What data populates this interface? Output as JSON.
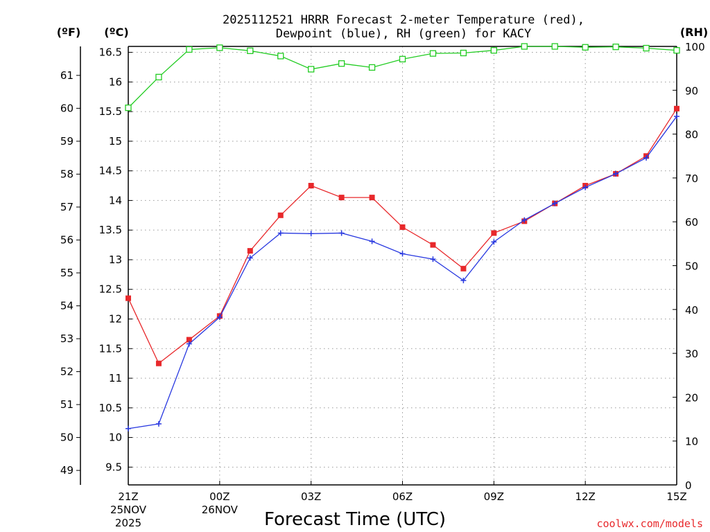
{
  "chart_data": {
    "type": "line",
    "title_line1": "2025112521 HRRR Forecast 2-meter Temperature (red),",
    "title_line2": "Dewpoint (blue), RH (green) for KACY",
    "xlabel": "Forecast Time (UTC)",
    "credit": "coolwx.com/models",
    "units": {
      "fahrenheit": "(ºF)",
      "celsius": "(ºC)",
      "rh": "(RH)"
    },
    "x_hours": [
      0,
      1,
      2,
      3,
      4,
      5,
      6,
      7,
      8,
      9,
      10,
      11,
      12,
      13,
      14,
      15,
      16,
      17,
      18
    ],
    "x_ticks": [
      {
        "hour": 0,
        "label": "21Z",
        "date": "25NOV",
        "year": "2025"
      },
      {
        "hour": 3,
        "label": "00Z",
        "date": "26NOV",
        "year": ""
      },
      {
        "hour": 6,
        "label": "03Z",
        "date": "",
        "year": ""
      },
      {
        "hour": 9,
        "label": "06Z",
        "date": "",
        "year": ""
      },
      {
        "hour": 12,
        "label": "09Z",
        "date": "",
        "year": ""
      },
      {
        "hour": 15,
        "label": "12Z",
        "date": "",
        "year": ""
      },
      {
        "hour": 18,
        "label": "15Z",
        "date": "",
        "year": ""
      }
    ],
    "celsius_axis": {
      "min": 9.2,
      "max": 16.6,
      "ticks": [
        "9.5",
        "10",
        "10.5",
        "11",
        "11.5",
        "12",
        "12.5",
        "13",
        "13.5",
        "14",
        "14.5",
        "15",
        "15.5",
        "16",
        "16.5"
      ]
    },
    "fahrenheit_axis": {
      "ticks": [
        "49",
        "50",
        "51",
        "52",
        "53",
        "54",
        "55",
        "56",
        "57",
        "58",
        "59",
        "60",
        "61"
      ]
    },
    "rh_axis": {
      "min": 0,
      "max": 100,
      "ticks": [
        "0",
        "10",
        "20",
        "30",
        "40",
        "50",
        "60",
        "70",
        "80",
        "90",
        "100"
      ]
    },
    "series": [
      {
        "name": "Temperature",
        "color": "#e8282b",
        "marker": "filled-square",
        "values": [
          12.35,
          11.25,
          11.65,
          12.05,
          13.15,
          13.75,
          14.25,
          14.05,
          14.05,
          13.55,
          13.25,
          12.85,
          13.45,
          13.65,
          13.95,
          14.25,
          14.45,
          14.75,
          15.55
        ]
      },
      {
        "name": "Dewpoint",
        "color": "#2838e0",
        "marker": "plus",
        "values": [
          10.15,
          10.23,
          11.58,
          12.03,
          13.03,
          13.45,
          13.44,
          13.45,
          13.31,
          13.1,
          13.01,
          12.65,
          13.3,
          13.67,
          13.95,
          14.22,
          14.45,
          14.72,
          15.42
        ]
      },
      {
        "name": "RH",
        "color": "#22cc22",
        "marker": "open-square",
        "values": [
          86,
          93,
          99.3,
          99.7,
          99,
          97.8,
          94.8,
          96.1,
          95.2,
          97.1,
          98.4,
          98.5,
          99.1,
          100,
          100,
          99.8,
          99.9,
          99.6,
          99.1
        ]
      }
    ]
  }
}
